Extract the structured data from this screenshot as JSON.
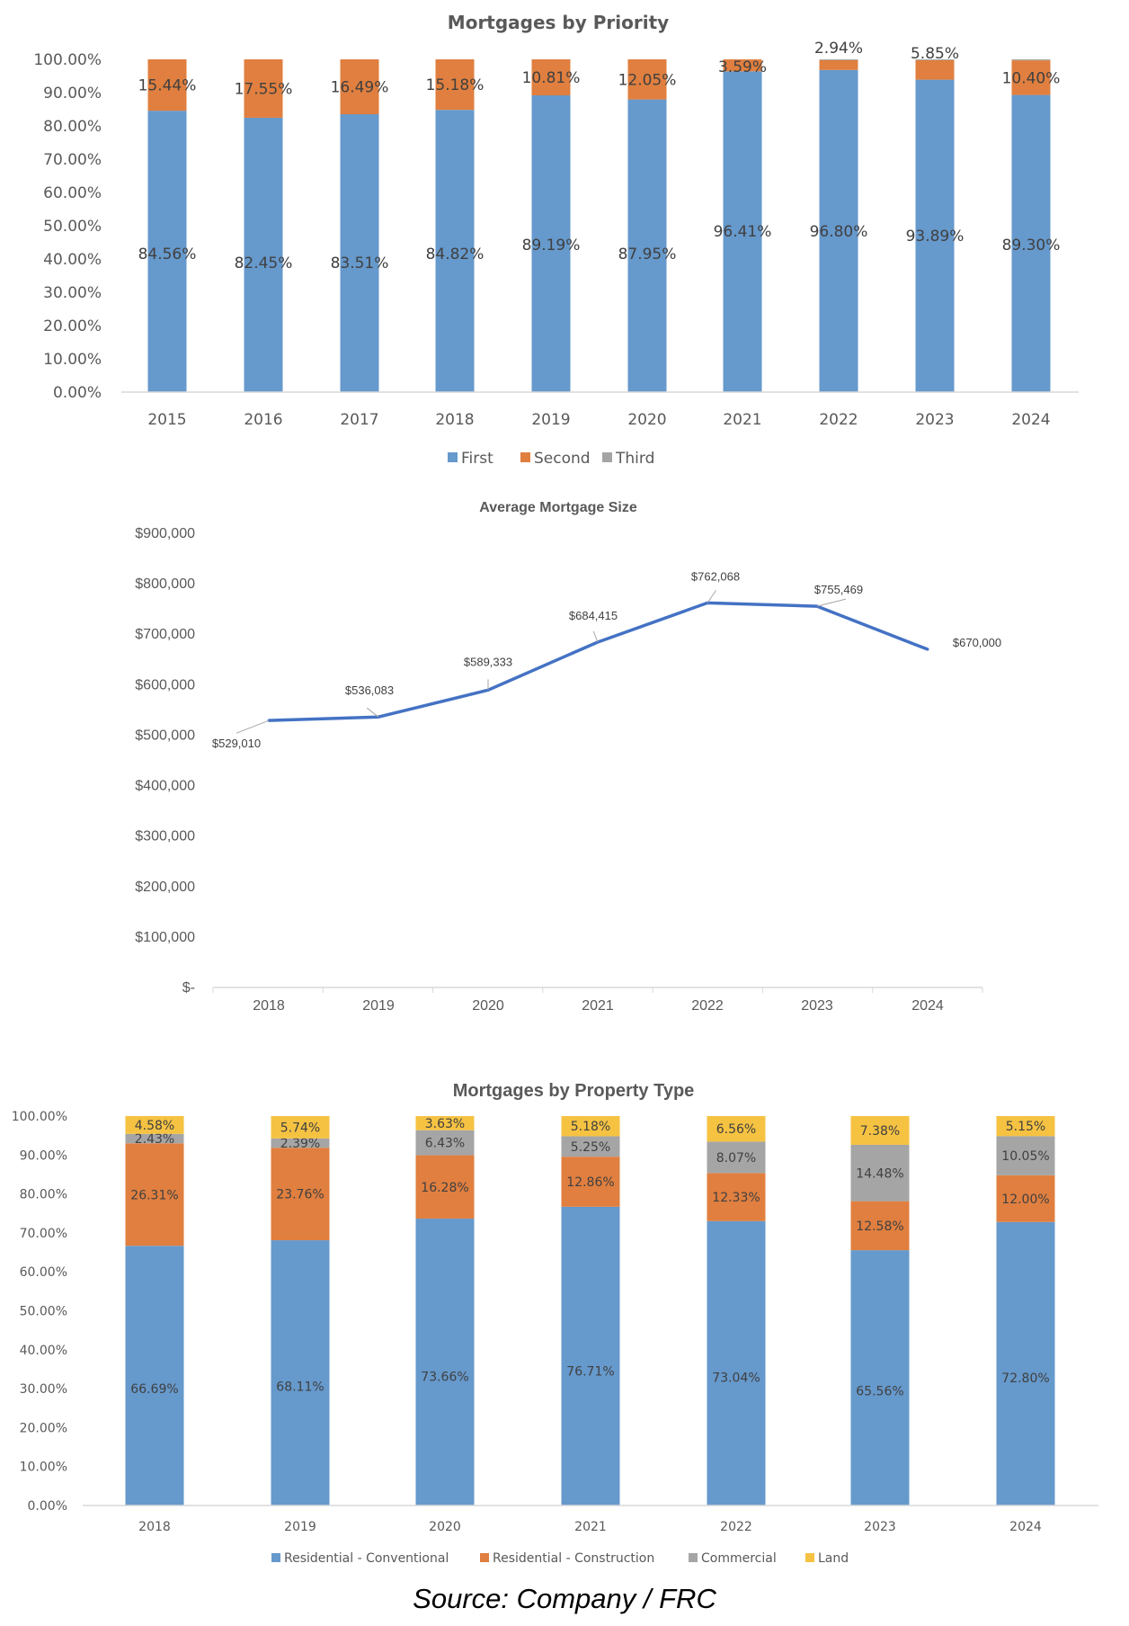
{
  "chart_data": [
    {
      "type": "bar",
      "stacked": true,
      "title": "Mortgages by Priority",
      "categories": [
        "2015",
        "2016",
        "2017",
        "2018",
        "2019",
        "2020",
        "2021",
        "2022",
        "2023",
        "2024"
      ],
      "series": [
        {
          "name": "First",
          "color": "#6699CC",
          "values": [
            84.56,
            82.45,
            83.51,
            84.82,
            89.19,
            87.95,
            96.41,
            96.8,
            93.89,
            89.3
          ]
        },
        {
          "name": "Second",
          "color": "#E07F3F",
          "values": [
            15.44,
            17.55,
            16.49,
            15.18,
            10.81,
            12.05,
            3.59,
            2.94,
            5.85,
            10.4
          ]
        },
        {
          "name": "Third",
          "color": "#A5A5A5",
          "values": [
            0,
            0,
            0,
            0,
            0,
            0,
            0,
            0.26,
            0.26,
            0.3
          ]
        }
      ],
      "data_labels": {
        "First": [
          "84.56%",
          "82.45%",
          "83.51%",
          "84.82%",
          "89.19%",
          "87.95%",
          "96.41%",
          "96.80%",
          "93.89%",
          "89.30%"
        ],
        "Second": [
          "15.44%",
          "17.55%",
          "16.49%",
          "15.18%",
          "10.81%",
          "12.05%",
          "3.59%",
          "2.94%",
          "5.85%",
          "10.40%"
        ]
      },
      "ylim": [
        0,
        100
      ],
      "yticks": [
        "0.00%",
        "10.00%",
        "20.00%",
        "30.00%",
        "40.00%",
        "50.00%",
        "60.00%",
        "70.00%",
        "80.00%",
        "90.00%",
        "100.00%"
      ],
      "xlabel": "",
      "ylabel": "",
      "grid": false,
      "legend": "bottom"
    },
    {
      "type": "line",
      "title": "Average Mortgage Size",
      "categories": [
        "2018",
        "2019",
        "2020",
        "2021",
        "2022",
        "2023",
        "2024"
      ],
      "series": [
        {
          "name": "Average Mortgage Size",
          "color": "#4472C4",
          "values": [
            529010,
            536083,
            589333,
            684415,
            762068,
            755469,
            670000
          ]
        }
      ],
      "data_labels": [
        "$529,010",
        "$536,083",
        "$589,333",
        "$684,415",
        "$762,068",
        "$755,469",
        "$670,000"
      ],
      "ylim": [
        0,
        900000
      ],
      "yticks": [
        "$-",
        "$100,000",
        "$200,000",
        "$300,000",
        "$400,000",
        "$500,000",
        "$600,000",
        "$700,000",
        "$800,000",
        "$900,000"
      ],
      "xlabel": "",
      "ylabel": "",
      "grid": false,
      "legend": "none"
    },
    {
      "type": "bar",
      "stacked": true,
      "title": "Mortgages by Property Type",
      "categories": [
        "2018",
        "2019",
        "2020",
        "2021",
        "2022",
        "2023",
        "2024"
      ],
      "series": [
        {
          "name": "Residential - Conventional",
          "color": "#6699CC",
          "values": [
            66.69,
            68.11,
            73.66,
            76.71,
            73.04,
            65.56,
            72.8
          ]
        },
        {
          "name": "Residential - Construction",
          "color": "#E07F3F",
          "values": [
            26.31,
            23.76,
            16.28,
            12.86,
            12.33,
            12.58,
            12.0
          ]
        },
        {
          "name": "Commercial",
          "color": "#A5A5A5",
          "values": [
            2.43,
            2.39,
            6.43,
            5.25,
            8.07,
            14.48,
            10.05
          ]
        },
        {
          "name": "Land",
          "color": "#F5C242",
          "values": [
            4.58,
            5.74,
            3.63,
            5.18,
            6.56,
            7.38,
            5.15
          ]
        }
      ],
      "data_labels": {
        "Residential - Conventional": [
          "66.69%",
          "68.11%",
          "73.66%",
          "76.71%",
          "73.04%",
          "65.56%",
          "72.80%"
        ],
        "Residential - Construction": [
          "26.31%",
          "23.76%",
          "16.28%",
          "12.86%",
          "12.33%",
          "12.58%",
          "12.00%"
        ],
        "Commercial": [
          "2.43%",
          "2.39%",
          "6.43%",
          "5.25%",
          "8.07%",
          "14.48%",
          "10.05%"
        ],
        "Land": [
          "4.58%",
          "5.74%",
          "3.63%",
          "5.18%",
          "6.56%",
          "7.38%",
          "5.15%"
        ]
      },
      "ylim": [
        0,
        100
      ],
      "yticks": [
        "0.00%",
        "10.00%",
        "20.00%",
        "30.00%",
        "40.00%",
        "50.00%",
        "60.00%",
        "70.00%",
        "80.00%",
        "90.00%",
        "100.00%"
      ],
      "xlabel": "",
      "ylabel": "",
      "grid": false,
      "legend": "bottom"
    }
  ],
  "footer": {
    "source": "Source: Company / FRC"
  }
}
